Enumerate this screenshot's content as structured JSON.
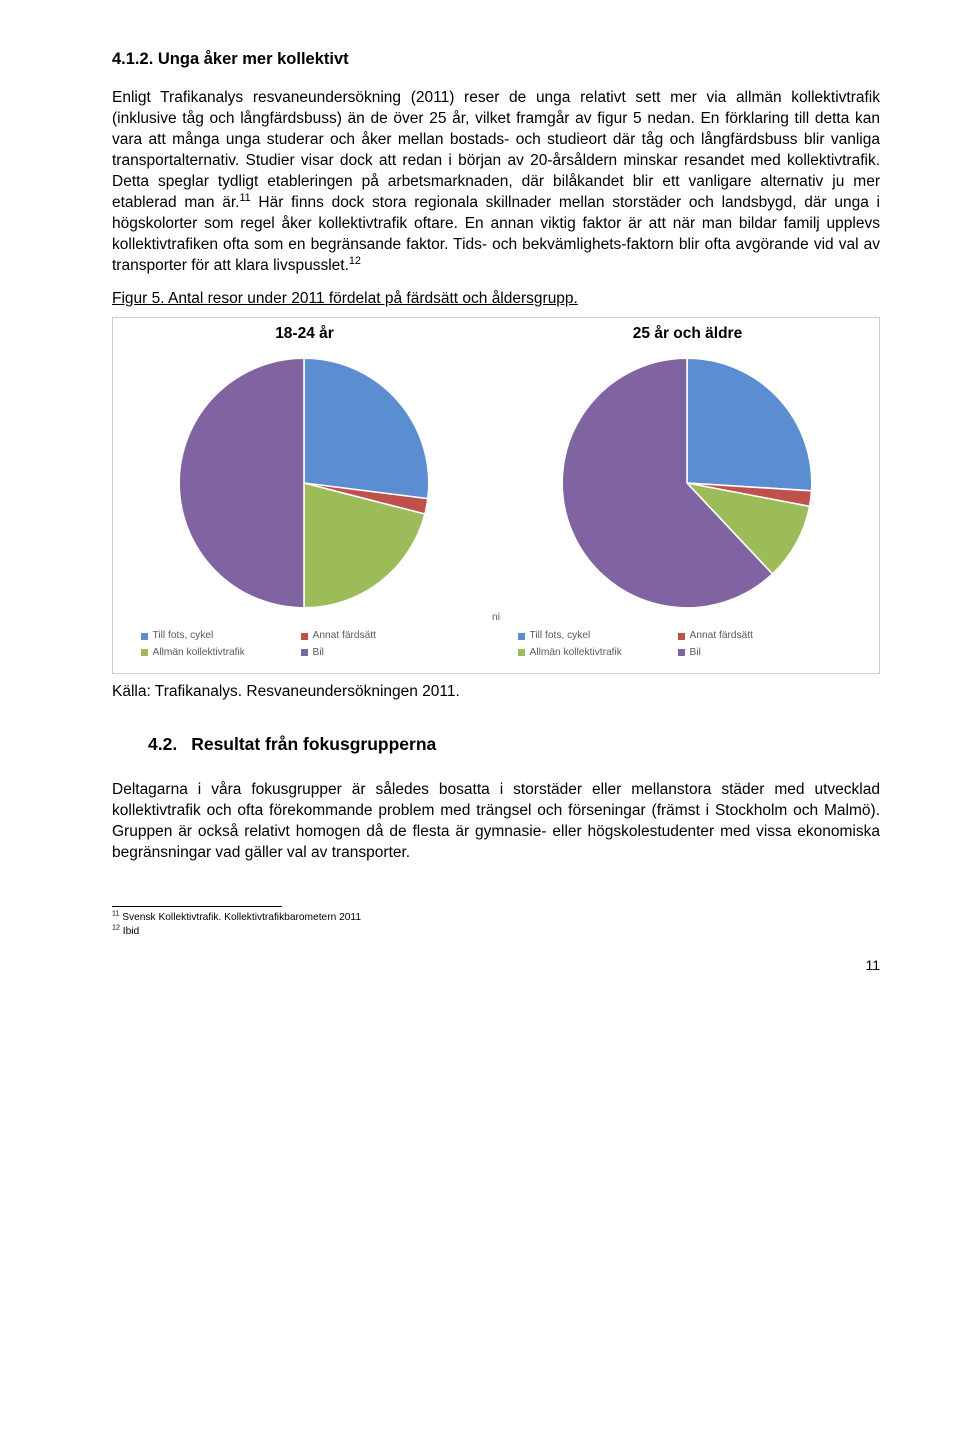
{
  "heading412": {
    "number": "4.1.2.",
    "title": "Unga åker mer kollektivt"
  },
  "para1_a": "Enligt Trafikanalys resvaneundersökning (2011) reser de unga relativt sett mer via allmän kollektivtrafik (inklusive tåg och långfärdsbuss) än de över 25 år, vilket framgår av figur 5 nedan. En förklaring till detta kan vara att många unga studerar och åker mellan bostads- och studieort där tåg och långfärdsbuss blir vanliga transportalternativ. Studier visar dock att redan i början av 20-årsåldern minskar resandet med kollektivtrafik. Detta speglar tydligt etableringen på arbetsmarknaden, där bilåkandet blir ett vanligare alternativ ju mer etablerad man är.",
  "para1_sup1": "11",
  "para1_b": " Här finns dock stora regionala skillnader mellan storstäder och landsbygd, där unga i högskolorter som regel åker kollektivtrafik oftare. En annan viktig faktor är att när man bildar familj upplevs kollektivtrafiken ofta som en begränsande faktor. Tids- och bekvämlighets-faktorn blir ofta avgörande vid val av transporter för att klara livspusslet.",
  "para1_sup2": "12",
  "figure_caption": "Figur 5. Antal resor under 2011 fördelat på färdsätt och åldersgrupp.",
  "chart1": {
    "title": "18-24 år",
    "type": "pie",
    "slices": [
      {
        "label": "Till fots, cykel",
        "value": 27,
        "color": "#5a8ed0"
      },
      {
        "label": "Annat färdsätt",
        "value": 2,
        "color": "#c0504d"
      },
      {
        "label": "Allmän kollektivtrafik",
        "value": 21,
        "color": "#9cbb59"
      },
      {
        "label": "Bil",
        "value": 50,
        "color": "#8064a2"
      }
    ],
    "background_color": "#ffffff",
    "stroke": "#ffffff"
  },
  "chart2": {
    "title": "25 år och äldre",
    "type": "pie",
    "slices": [
      {
        "label": "Till fots, cykel",
        "value": 26,
        "color": "#5a8ed0"
      },
      {
        "label": "Annat färdsätt",
        "value": 2,
        "color": "#c0504d"
      },
      {
        "label": "Allmän kollektivtrafik",
        "value": 10,
        "color": "#9cbb59"
      },
      {
        "label": "Bil",
        "value": 62,
        "color": "#8064a2"
      }
    ],
    "background_color": "#ffffff",
    "stroke": "#ffffff"
  },
  "legend": {
    "items": [
      {
        "label": "Till fots, cykel",
        "color": "#5a8ed0"
      },
      {
        "label": "Annat färdsätt",
        "color": "#c0504d"
      },
      {
        "label": "Allmän kollektivtrafik",
        "color": "#9cbb59"
      },
      {
        "label": "Bil",
        "color": "#8064a2"
      }
    ]
  },
  "ni_fragment": "ni",
  "source": "Källa: Trafikanalys. Resvaneundersökningen 2011.",
  "heading42": {
    "number": "4.2.",
    "title": "Resultat från fokusgrupperna"
  },
  "para2": "Deltagarna i våra fokusgrupper är således bosatta i storstäder eller mellanstora städer med utvecklad kollektivtrafik och ofta förekommande problem med trängsel och förseningar (främst i Stockholm och Malmö). Gruppen är också relativt homogen då de flesta är gymnasie- eller högskolestudenter med vissa ekonomiska begränsningar vad gäller val av transporter.",
  "footnotes": {
    "fn11_num": "11",
    "fn11_text": " Svensk Kollektivtrafik. Kollektivtrafikbarometern 2011",
    "fn12_num": "12",
    "fn12_text": " Ibid"
  },
  "page_number": "11"
}
